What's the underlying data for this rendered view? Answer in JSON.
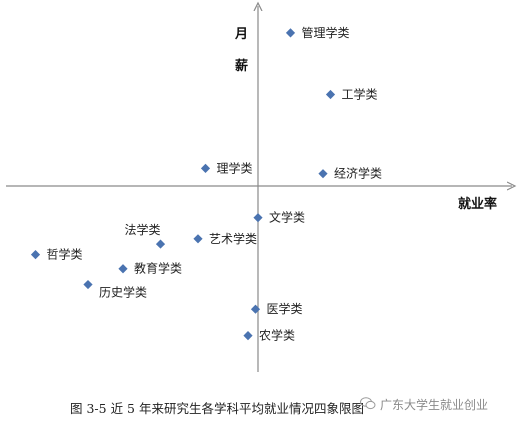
{
  "chart_data": {
    "type": "scatter",
    "title": "",
    "xlabel": "就业率",
    "ylabel": "月薪",
    "ylabel_chars": [
      "月",
      "薪"
    ],
    "xlim": [
      -10,
      10
    ],
    "ylim": [
      -10,
      10
    ],
    "grid": false,
    "legend": "none",
    "marker_color": "#4a73b0",
    "axis_color": "#8a8a8a",
    "points": [
      {
        "label": "管理学类",
        "x": 1.3,
        "y": 8.7,
        "label_side": "right"
      },
      {
        "label": "工学类",
        "x": 2.9,
        "y": 5.2,
        "label_side": "right"
      },
      {
        "label": "理学类",
        "x": -2.1,
        "y": 1.0,
        "label_side": "right"
      },
      {
        "label": "经济学类",
        "x": 2.6,
        "y": 0.7,
        "label_side": "right"
      },
      {
        "label": "文学类",
        "x": 0.0,
        "y": -1.8,
        "label_side": "right"
      },
      {
        "label": "法学类",
        "x": -3.9,
        "y": -3.3,
        "label_side": "above"
      },
      {
        "label": "艺术学类",
        "x": -2.4,
        "y": -3.0,
        "label_side": "right"
      },
      {
        "label": "哲学类",
        "x": -8.9,
        "y": -3.9,
        "label_side": "right"
      },
      {
        "label": "教育学类",
        "x": -5.4,
        "y": -4.7,
        "label_side": "right"
      },
      {
        "label": "历史学类",
        "x": -6.8,
        "y": -5.6,
        "label_side": "right-below"
      },
      {
        "label": "医学类",
        "x": -0.1,
        "y": -7.0,
        "label_side": "right"
      },
      {
        "label": "农学类",
        "x": -0.4,
        "y": -8.5,
        "label_side": "right"
      }
    ]
  },
  "caption": "图 3-5  近 5 年来研究生各学科平均就业情况四象限图",
  "watermark": {
    "text": "广东大学生就业创业",
    "icon": "wechat-icon",
    "color": "#8a8a8a"
  }
}
